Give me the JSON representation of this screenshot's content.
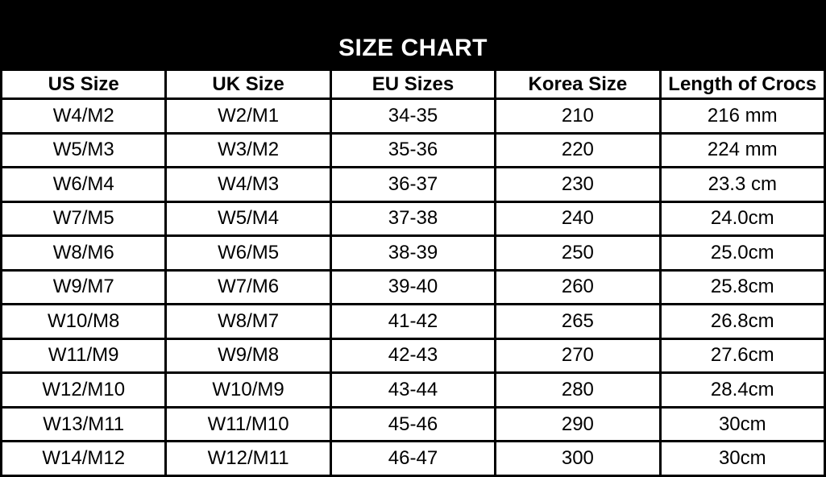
{
  "title": "SIZE CHART",
  "table": {
    "columns": [
      "US Size",
      "UK Size",
      "EU Sizes",
      "Korea Size",
      "Length of Crocs"
    ],
    "rows": [
      [
        "W4/M2",
        "W2/M1",
        "34-35",
        "210",
        "216 mm"
      ],
      [
        "W5/M3",
        "W3/M2",
        "35-36",
        "220",
        "224 mm"
      ],
      [
        "W6/M4",
        "W4/M3",
        "36-37",
        "230",
        "23.3 cm"
      ],
      [
        "W7/M5",
        "W5/M4",
        "37-38",
        "240",
        "24.0cm"
      ],
      [
        "W8/M6",
        "W6/M5",
        "38-39",
        "250",
        "25.0cm"
      ],
      [
        "W9/M7",
        "W7/M6",
        "39-40",
        "260",
        "25.8cm"
      ],
      [
        "W10/M8",
        "W8/M7",
        "41-42",
        "265",
        "26.8cm"
      ],
      [
        "W11/M9",
        "W9/M8",
        "42-43",
        "270",
        "27.6cm"
      ],
      [
        "W12/M10",
        "W10/M9",
        "43-44",
        "280",
        "28.4cm"
      ],
      [
        "W13/M11",
        "W11/M10",
        "45-46",
        "290",
        "30cm"
      ],
      [
        "W14/M12",
        "W12/M11",
        "46-47",
        "300",
        "30cm"
      ]
    ]
  },
  "chart_data": {
    "type": "table",
    "title": "SIZE CHART",
    "columns": [
      "US Size",
      "UK Size",
      "EU Sizes",
      "Korea Size",
      "Length of Crocs"
    ],
    "rows": [
      [
        "W4/M2",
        "W2/M1",
        "34-35",
        "210",
        "216 mm"
      ],
      [
        "W5/M3",
        "W3/M2",
        "35-36",
        "220",
        "224 mm"
      ],
      [
        "W6/M4",
        "W4/M3",
        "36-37",
        "230",
        "23.3 cm"
      ],
      [
        "W7/M5",
        "W5/M4",
        "37-38",
        "240",
        "24.0cm"
      ],
      [
        "W8/M6",
        "W6/M5",
        "38-39",
        "250",
        "25.0cm"
      ],
      [
        "W9/M7",
        "W7/M6",
        "39-40",
        "260",
        "25.8cm"
      ],
      [
        "W10/M8",
        "W8/M7",
        "41-42",
        "265",
        "26.8cm"
      ],
      [
        "W11/M9",
        "W9/M8",
        "42-43",
        "270",
        "27.6cm"
      ],
      [
        "W12/M10",
        "W10/M9",
        "43-44",
        "280",
        "28.4cm"
      ],
      [
        "W13/M11",
        "W11/M10",
        "45-46",
        "290",
        "30cm"
      ],
      [
        "W14/M12",
        "W12/M11",
        "46-47",
        "300",
        "30cm"
      ]
    ]
  },
  "colors": {
    "band_background": "#000000",
    "band_text": "#ffffff",
    "border": "#000000",
    "cell_background": "#ffffff",
    "cell_text": "#000000"
  }
}
